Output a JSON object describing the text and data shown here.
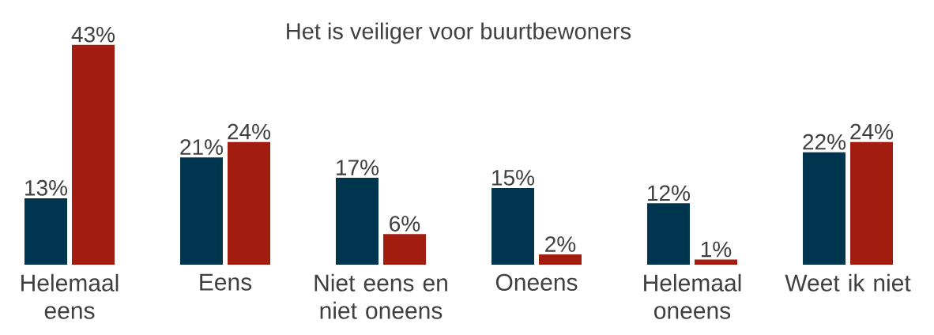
{
  "chart_data": {
    "type": "bar",
    "title": "Het is veiliger voor buurtbewoners",
    "categories": [
      "Helemaal eens",
      "Eens",
      "Niet eens en niet oneens",
      "Oneens",
      "Helemaal oneens",
      "Weet ik niet"
    ],
    "series": [
      {
        "color": "#003550",
        "values": [
          13,
          21,
          17,
          15,
          12,
          22
        ],
        "value_labels": [
          "13%",
          "21%",
          "17%",
          "15%",
          "12%",
          "22%"
        ]
      },
      {
        "color": "#a21d10",
        "values": [
          43,
          24,
          6,
          2,
          1,
          24
        ],
        "value_labels": [
          "43%",
          "24%",
          "6%",
          "2%",
          "1%",
          "24%"
        ]
      }
    ]
  }
}
